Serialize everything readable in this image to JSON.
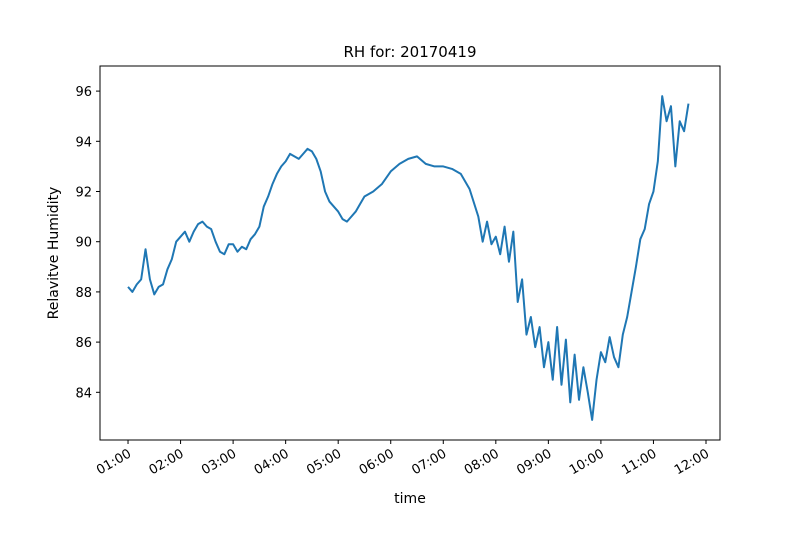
{
  "chart_data": {
    "type": "line",
    "title": "RH for: 20170419",
    "x_label": "time",
    "y_label": "Relavitve Humidity",
    "x": [
      "01:00",
      "01:05",
      "01:10",
      "01:15",
      "01:20",
      "01:25",
      "01:30",
      "01:35",
      "01:40",
      "01:45",
      "01:50",
      "01:55",
      "02:00",
      "02:05",
      "02:10",
      "02:15",
      "02:20",
      "02:25",
      "02:30",
      "02:35",
      "02:40",
      "02:45",
      "02:50",
      "02:55",
      "03:00",
      "03:05",
      "03:10",
      "03:15",
      "03:20",
      "03:25",
      "03:30",
      "03:35",
      "03:40",
      "03:45",
      "03:50",
      "03:55",
      "04:00",
      "04:05",
      "04:10",
      "04:15",
      "04:20",
      "04:25",
      "04:30",
      "04:35",
      "04:40",
      "04:45",
      "04:50",
      "04:55",
      "05:00",
      "05:05",
      "05:10",
      "05:15",
      "05:20",
      "05:25",
      "05:30",
      "05:40",
      "05:50",
      "06:00",
      "06:10",
      "06:20",
      "06:30",
      "06:40",
      "06:50",
      "07:00",
      "07:10",
      "07:20",
      "07:30",
      "07:40",
      "07:45",
      "07:50",
      "07:55",
      "08:00",
      "08:05",
      "08:10",
      "08:15",
      "08:20",
      "08:25",
      "08:30",
      "08:35",
      "08:40",
      "08:45",
      "08:50",
      "08:55",
      "09:00",
      "09:05",
      "09:10",
      "09:15",
      "09:20",
      "09:25",
      "09:30",
      "09:35",
      "09:40",
      "09:45",
      "09:50",
      "09:55",
      "10:00",
      "10:05",
      "10:10",
      "10:15",
      "10:20",
      "10:25",
      "10:30",
      "10:35",
      "10:40",
      "10:45",
      "10:50",
      "10:55",
      "11:00",
      "11:05",
      "11:10",
      "11:15",
      "11:20",
      "11:25",
      "11:30",
      "11:35",
      "11:40"
    ],
    "series": [
      {
        "name": "RH",
        "color": "#1f77b4",
        "values": [
          88.2,
          88.0,
          88.3,
          88.5,
          89.7,
          88.5,
          87.9,
          88.2,
          88.3,
          88.9,
          89.3,
          90.0,
          90.2,
          90.4,
          90.0,
          90.4,
          90.7,
          90.8,
          90.6,
          90.5,
          90.0,
          89.6,
          89.5,
          89.9,
          89.9,
          89.6,
          89.8,
          89.7,
          90.1,
          90.3,
          90.6,
          91.4,
          91.8,
          92.3,
          92.7,
          93.0,
          93.2,
          93.5,
          93.4,
          93.3,
          93.5,
          93.7,
          93.6,
          93.3,
          92.8,
          92.0,
          91.6,
          91.4,
          91.2,
          90.9,
          90.8,
          91.0,
          91.2,
          91.5,
          91.8,
          92.0,
          92.3,
          92.8,
          93.1,
          93.3,
          93.4,
          93.1,
          93.0,
          93.0,
          92.9,
          92.7,
          92.1,
          91.0,
          90.0,
          90.8,
          89.9,
          90.2,
          89.5,
          90.6,
          89.2,
          90.4,
          87.6,
          88.5,
          86.3,
          87.0,
          85.8,
          86.6,
          85.0,
          86.0,
          84.5,
          86.6,
          84.3,
          86.1,
          83.6,
          85.5,
          83.7,
          85.0,
          84.0,
          82.9,
          84.5,
          85.6,
          85.2,
          86.2,
          85.4,
          85.0,
          86.3,
          87.0,
          88.0,
          89.0,
          90.1,
          90.5,
          91.5,
          92.0,
          93.2,
          95.8,
          94.8,
          95.4,
          93.0,
          94.8,
          94.4,
          95.5
        ]
      }
    ],
    "xlim": [
      "00:28",
      "12:16"
    ],
    "xticks": [
      "01:00",
      "02:00",
      "03:00",
      "04:00",
      "05:00",
      "06:00",
      "07:00",
      "08:00",
      "09:00",
      "10:00",
      "11:00",
      "12:00"
    ],
    "ylim": [
      82.1,
      97.0
    ],
    "yticks": [
      84,
      86,
      88,
      90,
      92,
      94,
      96
    ]
  }
}
